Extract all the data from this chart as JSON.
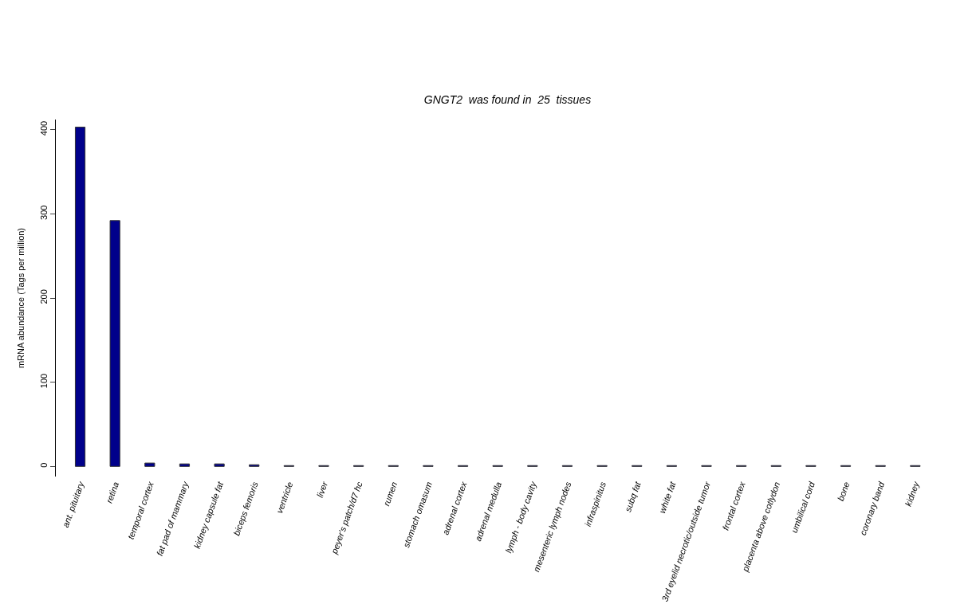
{
  "chart_data": {
    "type": "bar",
    "title": "GNGT2  was found in  25  tissues",
    "ylabel": "mRNA abundance (Tags per million)",
    "categories": [
      "ant. pituitary",
      "retina",
      "temporal cortex",
      "fat pad of mammary",
      "kidney capsule fat",
      "biceps femoris",
      "ventricle",
      "liver",
      "peyer's patch/d7 hc",
      "rumen",
      "stomach omasum",
      "adrenal cortex",
      "adrenal medulla",
      "lymph - body cavity",
      "mesenteric lymph nodes",
      "infraspinitus",
      "subq fat",
      "white fat",
      "3rd eyelid necrotic/outside tumor",
      "frontal cortex",
      "placenta above cotlydon",
      "umbilical cord",
      "bone",
      "coronary band",
      "kidney"
    ],
    "values": [
      403,
      292,
      4,
      3,
      3,
      2,
      1,
      1,
      1,
      1,
      1,
      1,
      1,
      1,
      1,
      1,
      1,
      1,
      1,
      1,
      1,
      1,
      1,
      1,
      1
    ],
    "color": "#00008b",
    "ylim": [
      -12,
      412
    ],
    "yticks": [
      0,
      100,
      200,
      300,
      400
    ],
    "grid": false
  }
}
